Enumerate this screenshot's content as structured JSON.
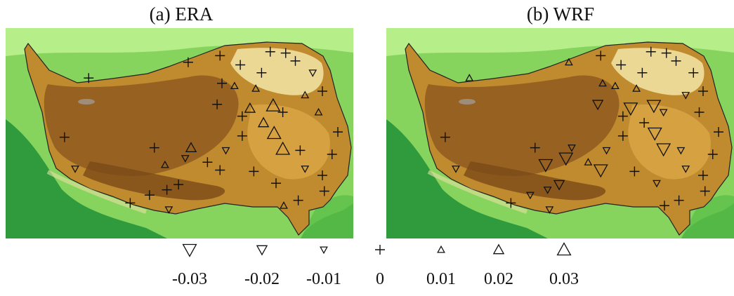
{
  "stations": [
    {
      "lon": 78.6,
      "lat": 37.2
    },
    {
      "lon": 88.9,
      "lat": 38.4
    },
    {
      "lon": 92.2,
      "lat": 38.9
    },
    {
      "lon": 94.3,
      "lat": 38.2
    },
    {
      "lon": 96.5,
      "lat": 37.6
    },
    {
      "lon": 97.4,
      "lat": 39.2
    },
    {
      "lon": 99.0,
      "lat": 39.1
    },
    {
      "lon": 100.0,
      "lat": 38.5
    },
    {
      "lon": 101.8,
      "lat": 37.6
    },
    {
      "lon": 92.4,
      "lat": 36.8
    },
    {
      "lon": 93.7,
      "lat": 36.6
    },
    {
      "lon": 95.9,
      "lat": 36.4
    },
    {
      "lon": 97.7,
      "lat": 35.1
    },
    {
      "lon": 95.3,
      "lat": 34.9
    },
    {
      "lon": 91.9,
      "lat": 35.2
    },
    {
      "lon": 96.7,
      "lat": 33.8
    },
    {
      "lon": 97.8,
      "lat": 33.0
    },
    {
      "lon": 98.7,
      "lat": 31.8
    },
    {
      "lon": 94.5,
      "lat": 32.8
    },
    {
      "lon": 89.2,
      "lat": 31.9
    },
    {
      "lon": 85.4,
      "lat": 31.9
    },
    {
      "lon": 92.8,
      "lat": 31.7
    },
    {
      "lon": 76.1,
      "lat": 32.7
    },
    {
      "lon": 77.2,
      "lat": 30.3
    },
    {
      "lon": 86.5,
      "lat": 30.6
    },
    {
      "lon": 88.6,
      "lat": 31.1
    },
    {
      "lon": 90.9,
      "lat": 30.8
    },
    {
      "lon": 92.2,
      "lat": 30.2
    },
    {
      "lon": 87.9,
      "lat": 29.1
    },
    {
      "lon": 84.9,
      "lat": 28.3
    },
    {
      "lon": 86.7,
      "lat": 28.7
    },
    {
      "lon": 82.9,
      "lat": 27.7
    },
    {
      "lon": 86.9,
      "lat": 27.2
    },
    {
      "lon": 95.7,
      "lat": 30.1
    },
    {
      "lon": 98.0,
      "lat": 29.2
    },
    {
      "lon": 98.8,
      "lat": 27.5
    },
    {
      "lon": 100.3,
      "lat": 27.9
    },
    {
      "lon": 102.8,
      "lat": 29.8
    },
    {
      "lon": 103.8,
      "lat": 31.4
    },
    {
      "lon": 104.4,
      "lat": 33.1
    },
    {
      "lon": 102.4,
      "lat": 34.6
    },
    {
      "lon": 101.0,
      "lat": 35.9
    },
    {
      "lon": 102.8,
      "lat": 36.2
    },
    {
      "lon": 100.5,
      "lat": 31.7
    },
    {
      "lon": 101.0,
      "lat": 30.3
    },
    {
      "lon": 103.0,
      "lat": 28.6
    },
    {
      "lon": 98.7,
      "lat": 34.6
    },
    {
      "lon": 94.5,
      "lat": 34.3
    }
  ],
  "panels": [
    {
      "title": "(a) ERA",
      "values": [
        0,
        0,
        0,
        0,
        0,
        0,
        0,
        0,
        -0.01,
        0,
        0.01,
        0.01,
        0.03,
        0.02,
        0,
        0.02,
        0.03,
        0.03,
        0,
        0.02,
        0,
        -0.01,
        0,
        -0.01,
        0.01,
        -0.01,
        0,
        0,
        0,
        0,
        0,
        0,
        -0.01,
        0,
        0,
        0.01,
        0,
        0,
        0,
        0,
        0.01,
        0.01,
        0,
        0,
        -0.01,
        0,
        0,
        0
      ]
    },
    {
      "title": "(b) WRF",
      "values": [
        0.01,
        0.01,
        0,
        0,
        0,
        0,
        0,
        0,
        0,
        0.01,
        0.01,
        0.01,
        -0.03,
        -0.03,
        -0.02,
        0,
        -0.03,
        -0.03,
        0,
        -0.01,
        0,
        -0.01,
        0,
        -0.01,
        -0.03,
        -0.03,
        0.01,
        -0.03,
        -0.02,
        -0.01,
        -0.01,
        0,
        -0.01,
        0,
        -0.01,
        0,
        0,
        0,
        0,
        0,
        0,
        -0.01,
        0,
        -0.01,
        -0.01,
        0,
        -0.01,
        0
      ]
    }
  ],
  "legend": {
    "values": [
      -0.03,
      -0.02,
      -0.01,
      0,
      0.01,
      0.02,
      0.03
    ]
  }
}
